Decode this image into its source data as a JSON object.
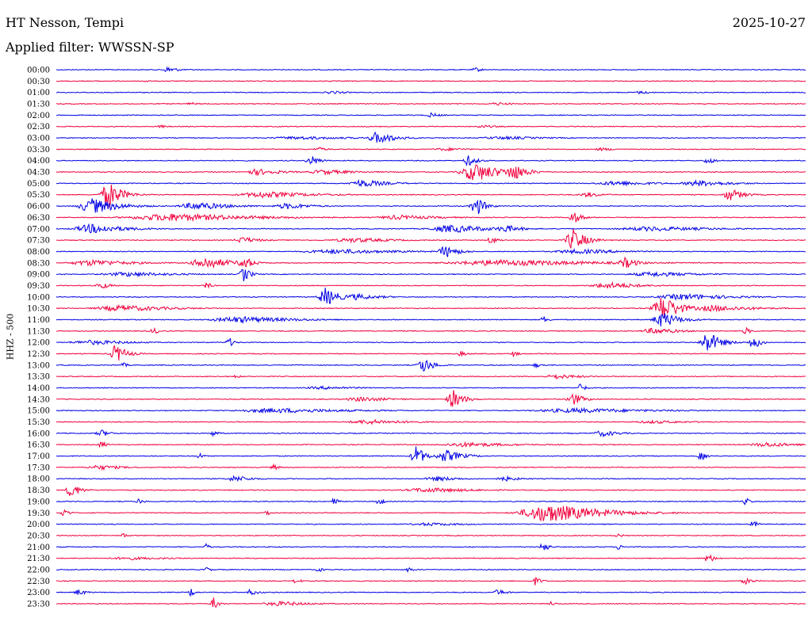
{
  "header": {
    "station": "HT Nesson, Tempi",
    "filter": "Applied filter: WWSSN-SP",
    "date": "2025-10-27"
  },
  "chart_data": {
    "type": "line",
    "title": "HT Nesson, Tempi",
    "ylabel": "HHZ - 500",
    "trace_colors": [
      "#0000e6",
      "#f0003c"
    ],
    "rows": [
      {
        "label": "00:00",
        "events": [
          {
            "t": 0.15,
            "a": 4,
            "w": 0.012
          },
          {
            "t": 0.56,
            "a": 3,
            "w": 0.008
          }
        ]
      },
      {
        "label": "00:30",
        "events": [
          {
            "t": 0.12,
            "a": 2,
            "w": 0.004
          }
        ]
      },
      {
        "label": "01:00",
        "events": [
          {
            "t": 0.37,
            "a": 2,
            "w": 0.02
          },
          {
            "t": 0.78,
            "a": 2,
            "w": 0.015
          }
        ]
      },
      {
        "label": "01:30",
        "events": [
          {
            "t": 0.18,
            "a": 2,
            "w": 0.01
          },
          {
            "t": 0.59,
            "a": 2,
            "w": 0.02
          }
        ]
      },
      {
        "label": "02:00",
        "events": [
          {
            "t": 0.5,
            "a": 3,
            "w": 0.012
          }
        ]
      },
      {
        "label": "02:30",
        "events": [
          {
            "t": 0.14,
            "a": 2,
            "w": 0.01
          },
          {
            "t": 0.57,
            "a": 2,
            "w": 0.02
          }
        ]
      },
      {
        "label": "03:00",
        "events": [
          {
            "t": 0.43,
            "a": 8,
            "w": 0.02
          },
          {
            "t": 0.33,
            "a": 2,
            "w": 0.08
          },
          {
            "t": 0.6,
            "a": 2,
            "w": 0.06
          }
        ]
      },
      {
        "label": "03:30",
        "events": [
          {
            "t": 0.35,
            "a": 3,
            "w": 0.01
          },
          {
            "t": 0.52,
            "a": 2,
            "w": 0.03
          },
          {
            "t": 0.73,
            "a": 2,
            "w": 0.02
          }
        ]
      },
      {
        "label": "04:00",
        "events": [
          {
            "t": 0.34,
            "a": 7,
            "w": 0.01
          },
          {
            "t": 0.55,
            "a": 7,
            "w": 0.01
          },
          {
            "t": 0.87,
            "a": 4,
            "w": 0.01
          }
        ]
      },
      {
        "label": "04:30",
        "events": [
          {
            "t": 0.56,
            "a": 12,
            "w": 0.03
          },
          {
            "t": 0.61,
            "a": 12,
            "w": 0.015
          },
          {
            "t": 0.27,
            "a": 4,
            "w": 0.03
          },
          {
            "t": 0.36,
            "a": 3,
            "w": 0.04
          }
        ]
      },
      {
        "label": "05:00",
        "events": [
          {
            "t": 0.41,
            "a": 5,
            "w": 0.03
          },
          {
            "t": 0.75,
            "a": 3,
            "w": 0.05
          },
          {
            "t": 0.86,
            "a": 4,
            "w": 0.04
          }
        ]
      },
      {
        "label": "05:30",
        "events": [
          {
            "t": 0.07,
            "a": 18,
            "w": 0.015
          },
          {
            "t": 0.28,
            "a": 4,
            "w": 0.06
          },
          {
            "t": 0.71,
            "a": 3,
            "w": 0.02
          },
          {
            "t": 0.9,
            "a": 8,
            "w": 0.015
          }
        ]
      },
      {
        "label": "06:00",
        "events": [
          {
            "t": 0.05,
            "a": 10,
            "w": 0.03
          },
          {
            "t": 0.56,
            "a": 14,
            "w": 0.01
          },
          {
            "t": 0.19,
            "a": 5,
            "w": 0.04
          },
          {
            "t": 0.31,
            "a": 4,
            "w": 0.03
          }
        ]
      },
      {
        "label": "06:30",
        "events": [
          {
            "t": 0.16,
            "a": 5,
            "w": 0.1
          },
          {
            "t": 0.69,
            "a": 8,
            "w": 0.01
          },
          {
            "t": 0.46,
            "a": 3,
            "w": 0.05
          }
        ]
      },
      {
        "label": "07:00",
        "events": [
          {
            "t": 0.05,
            "a": 6,
            "w": 0.04
          },
          {
            "t": 0.53,
            "a": 5,
            "w": 0.05
          },
          {
            "t": 0.6,
            "a": 5,
            "w": 0.02
          },
          {
            "t": 0.8,
            "a": 3,
            "w": 0.08
          }
        ]
      },
      {
        "label": "07:30",
        "events": [
          {
            "t": 0.69,
            "a": 14,
            "w": 0.015
          },
          {
            "t": 0.58,
            "a": 5,
            "w": 0.008
          },
          {
            "t": 0.25,
            "a": 4,
            "w": 0.02
          },
          {
            "t": 0.4,
            "a": 3,
            "w": 0.05
          }
        ]
      },
      {
        "label": "08:00",
        "events": [
          {
            "t": 0.52,
            "a": 8,
            "w": 0.015
          },
          {
            "t": 0.38,
            "a": 3,
            "w": 0.08
          },
          {
            "t": 0.7,
            "a": 3,
            "w": 0.06
          }
        ]
      },
      {
        "label": "08:30",
        "events": [
          {
            "t": 0.2,
            "a": 8,
            "w": 0.03
          },
          {
            "t": 0.25,
            "a": 10,
            "w": 0.01
          },
          {
            "t": 0.6,
            "a": 4,
            "w": 0.12
          },
          {
            "t": 0.76,
            "a": 7,
            "w": 0.015
          },
          {
            "t": 0.05,
            "a": 4,
            "w": 0.05
          }
        ]
      },
      {
        "label": "09:00",
        "events": [
          {
            "t": 0.25,
            "a": 10,
            "w": 0.008
          },
          {
            "t": 0.1,
            "a": 3,
            "w": 0.06
          },
          {
            "t": 0.8,
            "a": 3,
            "w": 0.06
          }
        ]
      },
      {
        "label": "09:30",
        "events": [
          {
            "t": 0.06,
            "a": 5,
            "w": 0.01
          },
          {
            "t": 0.2,
            "a": 5,
            "w": 0.006
          },
          {
            "t": 0.74,
            "a": 4,
            "w": 0.04
          }
        ]
      },
      {
        "label": "10:00",
        "events": [
          {
            "t": 0.36,
            "a": 12,
            "w": 0.015
          },
          {
            "t": 0.4,
            "a": 4,
            "w": 0.03
          },
          {
            "t": 0.84,
            "a": 4,
            "w": 0.06
          }
        ]
      },
      {
        "label": "10:30",
        "events": [
          {
            "t": 0.81,
            "a": 16,
            "w": 0.02
          },
          {
            "t": 0.09,
            "a": 4,
            "w": 0.06
          },
          {
            "t": 0.88,
            "a": 4,
            "w": 0.05
          }
        ]
      },
      {
        "label": "11:00",
        "events": [
          {
            "t": 0.81,
            "a": 10,
            "w": 0.02
          },
          {
            "t": 0.25,
            "a": 4,
            "w": 0.07
          },
          {
            "t": 0.65,
            "a": 5,
            "w": 0.006
          }
        ]
      },
      {
        "label": "11:30",
        "events": [
          {
            "t": 0.13,
            "a": 5,
            "w": 0.006
          },
          {
            "t": 0.8,
            "a": 4,
            "w": 0.03
          },
          {
            "t": 0.92,
            "a": 5,
            "w": 0.006
          }
        ]
      },
      {
        "label": "12:00",
        "events": [
          {
            "t": 0.87,
            "a": 14,
            "w": 0.015
          },
          {
            "t": 0.93,
            "a": 10,
            "w": 0.008
          },
          {
            "t": 0.23,
            "a": 8,
            "w": 0.005
          },
          {
            "t": 0.05,
            "a": 3,
            "w": 0.05
          }
        ]
      },
      {
        "label": "12:30",
        "events": [
          {
            "t": 0.08,
            "a": 12,
            "w": 0.012
          },
          {
            "t": 0.54,
            "a": 4,
            "w": 0.006
          },
          {
            "t": 0.61,
            "a": 4,
            "w": 0.006
          }
        ]
      },
      {
        "label": "13:00",
        "events": [
          {
            "t": 0.49,
            "a": 10,
            "w": 0.012
          },
          {
            "t": 0.09,
            "a": 3,
            "w": 0.006
          },
          {
            "t": 0.64,
            "a": 4,
            "w": 0.005
          }
        ]
      },
      {
        "label": "13:30",
        "events": [
          {
            "t": 0.67,
            "a": 3,
            "w": 0.03
          },
          {
            "t": 0.24,
            "a": 3,
            "w": 0.005
          }
        ]
      },
      {
        "label": "14:00",
        "events": [
          {
            "t": 0.7,
            "a": 6,
            "w": 0.006
          },
          {
            "t": 0.36,
            "a": 2,
            "w": 0.05
          }
        ]
      },
      {
        "label": "14:30",
        "events": [
          {
            "t": 0.53,
            "a": 12,
            "w": 0.012
          },
          {
            "t": 0.69,
            "a": 8,
            "w": 0.012
          },
          {
            "t": 0.41,
            "a": 3,
            "w": 0.04
          }
        ]
      },
      {
        "label": "15:00",
        "events": [
          {
            "t": 0.3,
            "a": 3,
            "w": 0.1
          },
          {
            "t": 0.7,
            "a": 3,
            "w": 0.1
          }
        ]
      },
      {
        "label": "15:30",
        "events": [
          {
            "t": 0.42,
            "a": 3,
            "w": 0.05
          },
          {
            "t": 0.8,
            "a": 2,
            "w": 0.05
          }
        ]
      },
      {
        "label": "16:00",
        "events": [
          {
            "t": 0.06,
            "a": 5,
            "w": 0.01
          },
          {
            "t": 0.21,
            "a": 4,
            "w": 0.006
          },
          {
            "t": 0.73,
            "a": 4,
            "w": 0.02
          }
        ]
      },
      {
        "label": "16:30",
        "events": [
          {
            "t": 0.06,
            "a": 5,
            "w": 0.006
          },
          {
            "t": 0.55,
            "a": 3,
            "w": 0.06
          },
          {
            "t": 0.95,
            "a": 3,
            "w": 0.04
          }
        ]
      },
      {
        "label": "17:00",
        "events": [
          {
            "t": 0.48,
            "a": 14,
            "w": 0.01
          },
          {
            "t": 0.52,
            "a": 8,
            "w": 0.02
          },
          {
            "t": 0.19,
            "a": 5,
            "w": 0.005
          },
          {
            "t": 0.86,
            "a": 8,
            "w": 0.006
          }
        ]
      },
      {
        "label": "17:30",
        "events": [
          {
            "t": 0.29,
            "a": 4,
            "w": 0.006
          },
          {
            "t": 0.06,
            "a": 3,
            "w": 0.03
          }
        ]
      },
      {
        "label": "18:00",
        "events": [
          {
            "t": 0.24,
            "a": 4,
            "w": 0.02
          },
          {
            "t": 0.51,
            "a": 3,
            "w": 0.03
          },
          {
            "t": 0.6,
            "a": 3,
            "w": 0.02
          }
        ]
      },
      {
        "label": "18:30",
        "events": [
          {
            "t": 0.02,
            "a": 10,
            "w": 0.01
          },
          {
            "t": 0.5,
            "a": 3,
            "w": 0.06
          }
        ]
      },
      {
        "label": "19:00",
        "events": [
          {
            "t": 0.37,
            "a": 8,
            "w": 0.004
          },
          {
            "t": 0.43,
            "a": 10,
            "w": 0.004
          },
          {
            "t": 0.11,
            "a": 4,
            "w": 0.006
          },
          {
            "t": 0.92,
            "a": 5,
            "w": 0.006
          }
        ]
      },
      {
        "label": "19:30",
        "events": [
          {
            "t": 0.66,
            "a": 12,
            "w": 0.06
          },
          {
            "t": 0.01,
            "a": 6,
            "w": 0.006
          },
          {
            "t": 0.28,
            "a": 4,
            "w": 0.006
          }
        ]
      },
      {
        "label": "20:00",
        "events": [
          {
            "t": 0.93,
            "a": 5,
            "w": 0.006
          },
          {
            "t": 0.5,
            "a": 2,
            "w": 0.05
          }
        ]
      },
      {
        "label": "20:30",
        "events": [
          {
            "t": 0.09,
            "a": 3,
            "w": 0.006
          },
          {
            "t": 0.75,
            "a": 3,
            "w": 0.006
          }
        ]
      },
      {
        "label": "21:00",
        "events": [
          {
            "t": 0.65,
            "a": 8,
            "w": 0.006
          },
          {
            "t": 0.2,
            "a": 4,
            "w": 0.005
          },
          {
            "t": 0.75,
            "a": 4,
            "w": 0.006
          }
        ]
      },
      {
        "label": "21:30",
        "events": [
          {
            "t": 0.87,
            "a": 6,
            "w": 0.008
          },
          {
            "t": 0.1,
            "a": 2,
            "w": 0.05
          }
        ]
      },
      {
        "label": "22:00",
        "events": [
          {
            "t": 0.2,
            "a": 4,
            "w": 0.005
          },
          {
            "t": 0.35,
            "a": 4,
            "w": 0.005
          },
          {
            "t": 0.47,
            "a": 4,
            "w": 0.005
          }
        ]
      },
      {
        "label": "22:30",
        "events": [
          {
            "t": 0.32,
            "a": 4,
            "w": 0.006
          },
          {
            "t": 0.64,
            "a": 6,
            "w": 0.006
          },
          {
            "t": 0.92,
            "a": 4,
            "w": 0.01
          }
        ]
      },
      {
        "label": "23:00",
        "events": [
          {
            "t": 0.03,
            "a": 4,
            "w": 0.01
          },
          {
            "t": 0.18,
            "a": 6,
            "w": 0.005
          },
          {
            "t": 0.26,
            "a": 4,
            "w": 0.01
          },
          {
            "t": 0.59,
            "a": 4,
            "w": 0.01
          }
        ]
      },
      {
        "label": "23:30",
        "events": [
          {
            "t": 0.21,
            "a": 8,
            "w": 0.006
          },
          {
            "t": 0.3,
            "a": 3,
            "w": 0.04
          },
          {
            "t": 0.66,
            "a": 3,
            "w": 0.005
          }
        ]
      }
    ]
  }
}
